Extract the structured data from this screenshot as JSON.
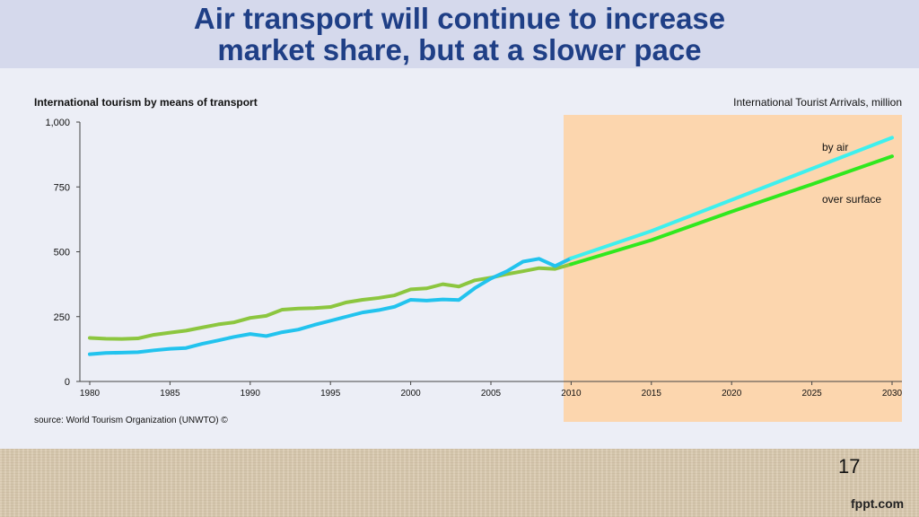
{
  "slide": {
    "title_line1": "Air transport will continue to increase",
    "title_line2": "market share, but at a slower pace",
    "page_number": "17",
    "brand": "fppt.com"
  },
  "colors": {
    "title": "#1f3f86",
    "header_bg": "#d5d9ec",
    "forecast_bg": "#fcd6ae",
    "air_historical": "#22c3ee",
    "air_forecast": "#3ef0ee",
    "surface_historical": "#8cc63f",
    "surface_forecast": "#30e81e"
  },
  "chart_data": {
    "type": "line",
    "title": "International tourism by means of transport",
    "subtitle": "International Tourist Arrivals, million",
    "source": "source: World Tourism Organization (UNWTO) ©",
    "xlim": [
      1980,
      2030
    ],
    "ylim": [
      0,
      1000
    ],
    "x_ticks": [
      1980,
      1985,
      1990,
      1995,
      2000,
      2005,
      2010,
      2015,
      2020,
      2025,
      2030
    ],
    "y_ticks": [
      0,
      250,
      500,
      750,
      1000
    ],
    "y_tick_labels": [
      "0",
      "250",
      "500",
      "750",
      "1,000"
    ],
    "forecast_region": [
      2010,
      2030
    ],
    "grid": false,
    "annotations": [
      {
        "text": "by air",
        "series": "air"
      },
      {
        "text": "over surface",
        "series": "surface"
      }
    ],
    "series": [
      {
        "id": "air",
        "segments": [
          {
            "kind": "historical",
            "x": [
              1980,
              1981,
              1982,
              1983,
              1984,
              1985,
              1986,
              1987,
              1988,
              1989,
              1990,
              1991,
              1992,
              1993,
              1994,
              1995,
              1996,
              1997,
              1998,
              1999,
              2000,
              2001,
              2002,
              2003,
              2004,
              2005,
              2006,
              2007,
              2008,
              2009,
              2010
            ],
            "y": [
              105,
              110,
              111,
              113,
              120,
              126,
              129,
              145,
              158,
              172,
              183,
              175,
              190,
              200,
              218,
              234,
              250,
              266,
              275,
              288,
              315,
              312,
              316,
              314,
              360,
              397,
              425,
              462,
              473,
              445,
              475
            ]
          },
          {
            "kind": "forecast",
            "x": [
              2010,
              2015,
              2020,
              2025,
              2030
            ],
            "y": [
              475,
              580,
              700,
              820,
              940
            ]
          }
        ]
      },
      {
        "id": "surface",
        "segments": [
          {
            "kind": "historical",
            "x": [
              1980,
              1981,
              1982,
              1983,
              1984,
              1985,
              1986,
              1987,
              1988,
              1989,
              1990,
              1991,
              1992,
              1993,
              1994,
              1995,
              1996,
              1997,
              1998,
              1999,
              2000,
              2001,
              2002,
              2003,
              2004,
              2005,
              2006,
              2007,
              2008,
              2009,
              2010
            ],
            "y": [
              168,
              165,
              164,
              166,
              180,
              188,
              196,
              208,
              220,
              228,
              245,
              253,
              277,
              281,
              283,
              287,
              305,
              315,
              322,
              332,
              355,
              359,
              375,
              366,
              390,
              400,
              414,
              425,
              437,
              434,
              452
            ]
          },
          {
            "kind": "forecast",
            "x": [
              2010,
              2015,
              2020,
              2025,
              2030
            ],
            "y": [
              452,
              545,
              655,
              760,
              868
            ]
          }
        ]
      }
    ]
  }
}
